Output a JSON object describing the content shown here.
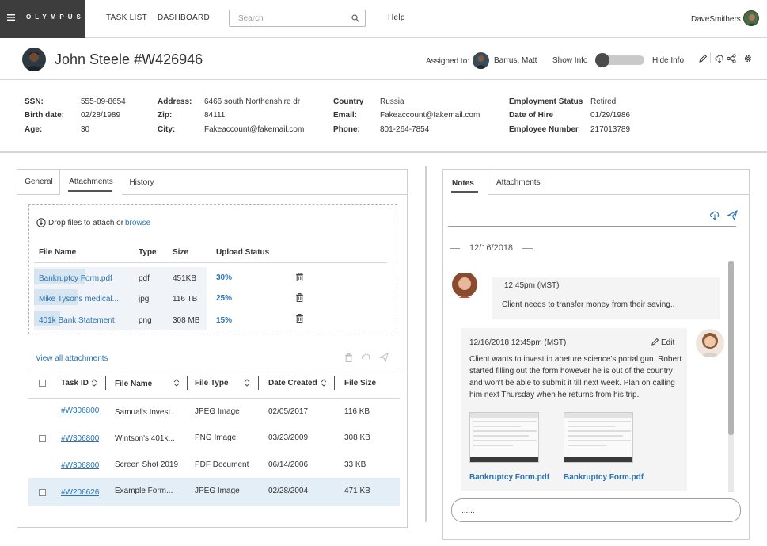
{
  "nav": {
    "logo": "OLYMPUS",
    "links": [
      "TASK LIST",
      "DASHBOARD"
    ],
    "search_placeholder": "Search",
    "help": "Help",
    "username": "DaveSmithers"
  },
  "header": {
    "title": "John Steele #W426946",
    "assigned_label": "Assigned to:",
    "assignee": "Barrus, Matt",
    "show_info": "Show Info",
    "hide_info": "Hide Info",
    "toggle_position": 0
  },
  "info": {
    "col1": [
      {
        "label": "SSN:",
        "value": "555-09-8654"
      },
      {
        "label": "Birth date:",
        "value": "02/28/1989"
      },
      {
        "label": "Age:",
        "value": "30"
      }
    ],
    "col2": [
      {
        "label": "Address:",
        "value": "6466 south Northenshire dr"
      },
      {
        "label": "Zip:",
        "value": "84111"
      },
      {
        "label": "City:",
        "value": "Fakeaccount@fakemail.com"
      }
    ],
    "col3": [
      {
        "label": "Country",
        "value": "Russia"
      },
      {
        "label": "Email:",
        "value": "Fakeaccount@fakemail.com"
      },
      {
        "label": "Phone:",
        "value": "801-264-7854"
      }
    ],
    "col4": [
      {
        "label": "Employment Status",
        "value": "Retired"
      },
      {
        "label": "Date of Hire",
        "value": "01/29/1986"
      },
      {
        "label": "Employee Number",
        "value": "217013789"
      }
    ]
  },
  "left_panel": {
    "tabs": [
      "General",
      "Attachments",
      "History"
    ],
    "active_tab": "Attachments",
    "drop_text": "Drop files to attach or",
    "browse": "browse",
    "upload_headers": [
      "File Name",
      "Type",
      "Size",
      "Upload Status"
    ],
    "uploads": [
      {
        "name": "Bankruptcy Form.pdf",
        "type": "pdf",
        "size": "451KB",
        "status": "30%",
        "progress": 0.3
      },
      {
        "name": "Mike Tysons medical....",
        "type": "jpg",
        "size": "116 TB",
        "status": "25%",
        "progress": 0.25
      },
      {
        "name": "401k Bank Statement",
        "type": "png",
        "size": "308 MB",
        "status": "15%",
        "progress": 0.15
      }
    ],
    "view_all": "View all attachments",
    "table_headers": [
      "Task ID",
      "File Name",
      "File Type",
      "Date Created",
      "File Size"
    ],
    "rows": [
      {
        "task_id": "#W306800",
        "file_name": "Samual's Invest...",
        "file_type": "JPEG Image",
        "date": "02/05/2017",
        "size": "116 KB"
      },
      {
        "task_id": "#W306800",
        "file_name": "Wintson's 401k...",
        "file_type": "PNG Image",
        "date": "03/23/2009",
        "size": "308 KB"
      },
      {
        "task_id": "#W306800",
        "file_name": "Screen Shot 2019...",
        "file_type": "PDF Document",
        "date": "06/14/2006",
        "size": "33 KB"
      },
      {
        "task_id": "#W206626",
        "file_name": "Example Form...",
        "file_type": "JPEG Image",
        "date": "02/28/2004",
        "size": "471 KB"
      }
    ]
  },
  "right_panel": {
    "tabs": [
      "Notes",
      "Attachments"
    ],
    "active_tab": "Notes",
    "date_divider": "12/16/2018",
    "note1": {
      "time": "12:45pm (MST)",
      "text": "Client needs to transfer money from their saving.."
    },
    "note2": {
      "timestamp": "12/16/2018 12:45pm (MST)",
      "edit": "Edit",
      "lines": [
        "Client wants to invest in apeture science's portal gun. Robert",
        "started filling out the form however he is out of the country",
        "and won't be able to submit it till next week. Plan on calling",
        "him next Thursday when he returns from his trip."
      ],
      "attachments": [
        "Bankruptcy Form.pdf",
        "Bankruptcy Form.pdf"
      ]
    },
    "input_value": "......"
  },
  "colors": {
    "brand_bg": "#3d3d3d",
    "link": "#2a74b3",
    "highlight_row": "#e4eef6"
  }
}
